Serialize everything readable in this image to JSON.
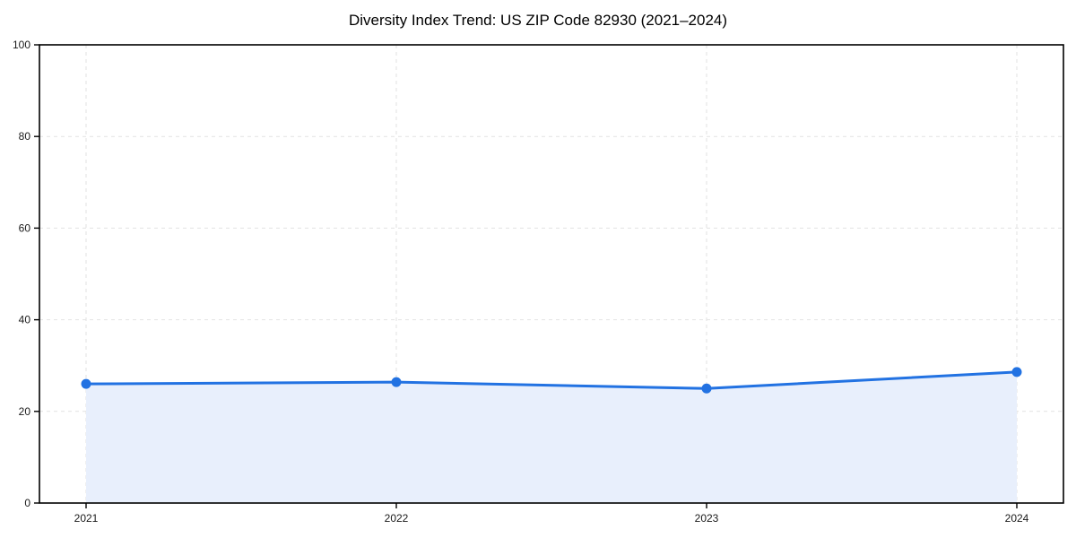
{
  "title": "Diversity Index Trend: US ZIP Code 82930 (2021–2024)",
  "chart_data": {
    "type": "area",
    "title": "Diversity Index Trend: US ZIP Code 82930 (2021–2024)",
    "categories": [
      "2021",
      "2022",
      "2023",
      "2024"
    ],
    "series": [
      {
        "name": "Diversity Index",
        "values": [
          26.0,
          26.4,
          25.0,
          28.6
        ]
      }
    ],
    "xlabel": "",
    "ylabel": "",
    "ylim": [
      0,
      100
    ],
    "yticks": [
      0,
      20,
      40,
      60,
      80,
      100
    ],
    "grid": true,
    "grid_style": "dashed",
    "legend": false,
    "marker": "circle",
    "colors": {
      "line": "#2272e2",
      "marker": "#2272e2",
      "fill": "#e8effc",
      "grid": "#e2e2e2",
      "axis": "#000000",
      "text": "#1a1a1a",
      "background": "#ffffff"
    }
  }
}
